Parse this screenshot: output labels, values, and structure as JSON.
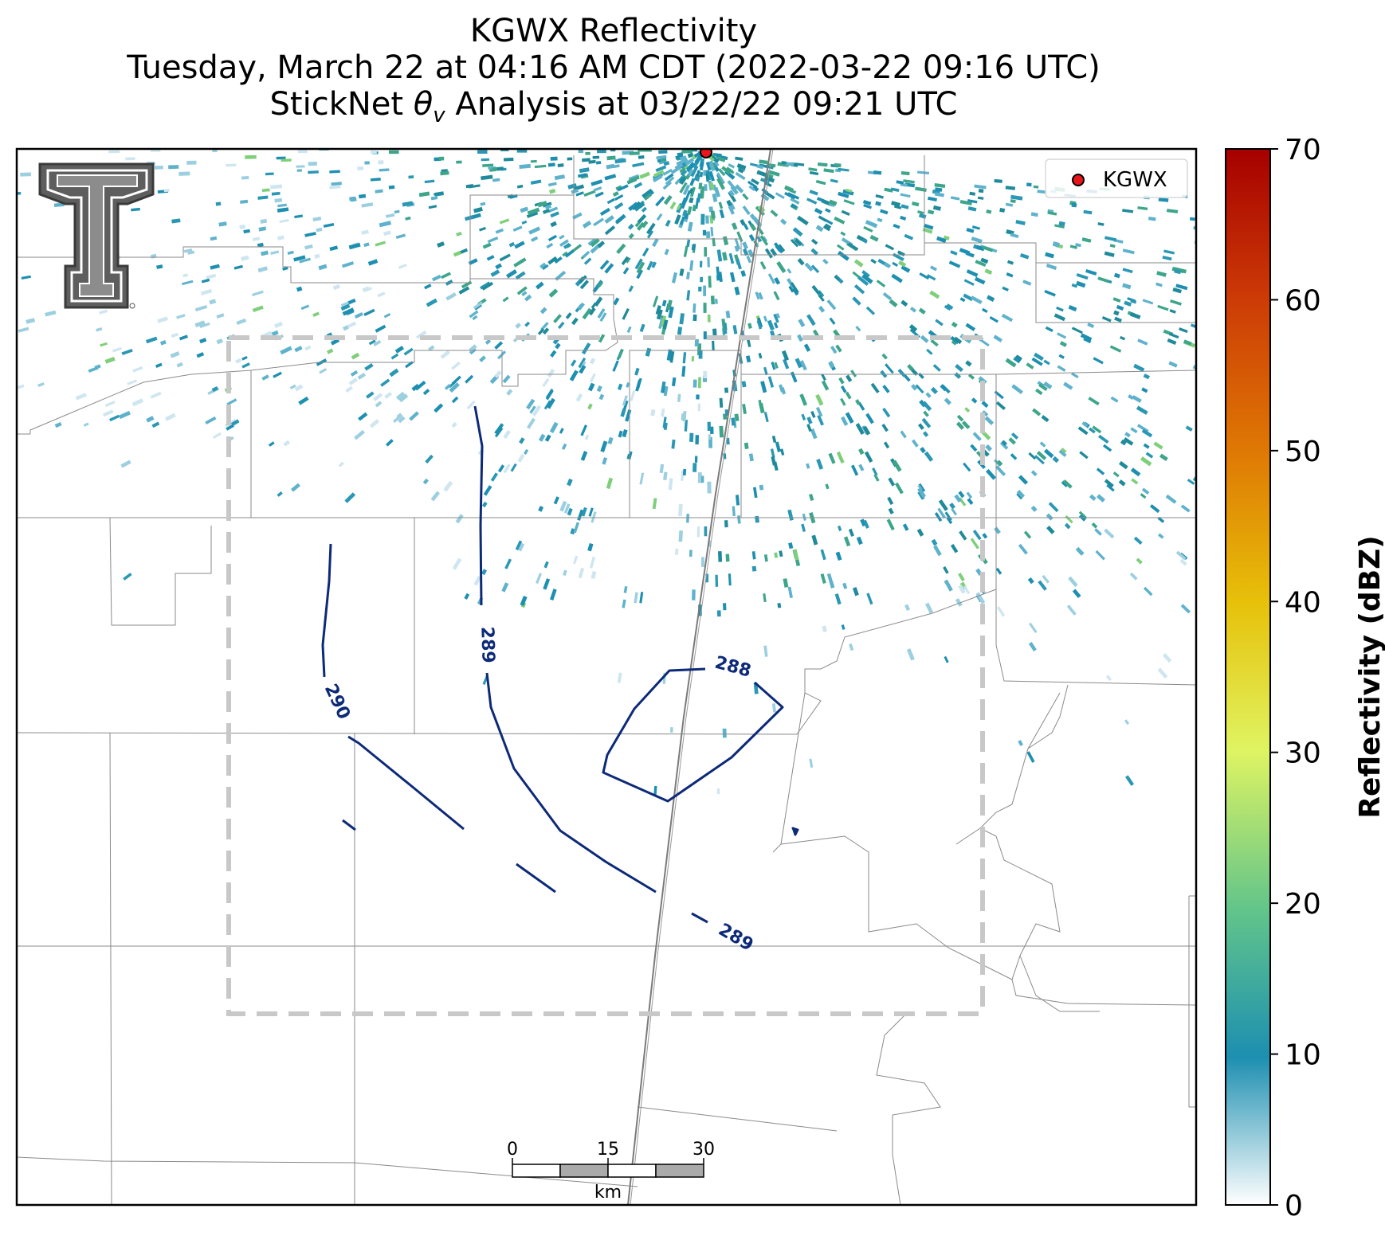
{
  "title": {
    "line1": "KGWX Reflectivity",
    "line2": "Tuesday, March 22 at 04:16 AM CDT (2022-03-22 09:16 UTC)",
    "line3_prefix": "StickNet ",
    "line3_symbol": "θ",
    "line3_subscript": "v",
    "line3_suffix": " Analysis at 03/22/22 09:21 UTC"
  },
  "legend": {
    "radar_label": "KGWX",
    "marker_color": "#e8151b"
  },
  "colorbar": {
    "label": "Reflectivity (dBZ)",
    "ticks": [
      "0",
      "10",
      "20",
      "30",
      "40",
      "50",
      "60",
      "70"
    ],
    "range": [
      0,
      70
    ],
    "colors": [
      "#ffffff",
      "#1d8fb0",
      "#62c58a",
      "#dff462",
      "#e7c10a",
      "#df7a04",
      "#cc3a06",
      "#a60000"
    ]
  },
  "contours": {
    "color": "#0d2a78",
    "labels": [
      "290",
      "289",
      "288",
      "289"
    ]
  },
  "scale_bar": {
    "ticks": [
      "0",
      "15",
      "30"
    ],
    "unit": "km"
  },
  "logo": {
    "name": "Texas Tech Double T"
  }
}
